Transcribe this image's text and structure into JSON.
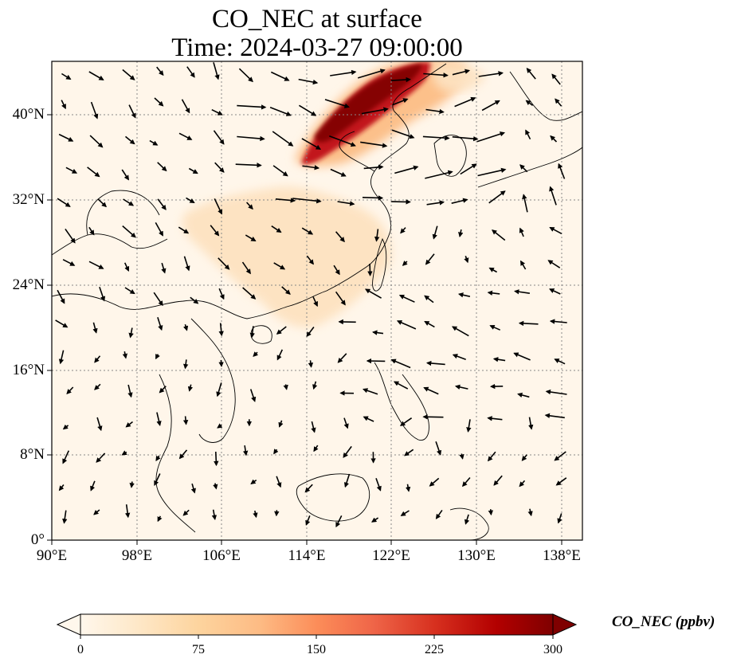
{
  "title": {
    "line1": "CO_NEC at surface",
    "line2": "Time: 2024-03-27 09:00:00"
  },
  "map": {
    "lon_range": [
      90,
      140
    ],
    "lat_range": [
      0,
      45
    ],
    "gridlines": true,
    "coastlines": true
  },
  "axes": {
    "lon_ticks": [
      90,
      98,
      106,
      114,
      122,
      130,
      138
    ],
    "lon_tick_labels": [
      "90°E",
      "98°E",
      "106°E",
      "114°E",
      "122°E",
      "130°E",
      "138°E"
    ],
    "lat_ticks": [
      0,
      8,
      16,
      24,
      32,
      40
    ],
    "lat_tick_labels": [
      "0°",
      "8°N",
      "16°N",
      "24°N",
      "32°N",
      "40°N"
    ]
  },
  "colorbar": {
    "label": "CO_NEC (ppbv)",
    "ticks": [
      0,
      75,
      150,
      225,
      300
    ],
    "tick_labels": [
      "0",
      "75",
      "150",
      "225",
      "300"
    ],
    "range": [
      0,
      300
    ],
    "extend": "both",
    "colormap": "OrRd",
    "colors": [
      "#fff7ec",
      "#fee8c8",
      "#fdd49e",
      "#fdbb84",
      "#fc8d59",
      "#ef6548",
      "#d7301f",
      "#b30000",
      "#7f0000"
    ]
  },
  "plume_regions": [
    {
      "name": "north-china-plume-core",
      "lon": [
        114,
        126
      ],
      "lat": [
        37,
        45
      ],
      "value_ppbv": 300
    },
    {
      "name": "north-china-plume-edge",
      "lon": [
        113,
        128
      ],
      "lat": [
        35,
        45
      ],
      "value_ppbv": 170
    },
    {
      "name": "yangtze-sichuan-band",
      "lon": [
        102,
        124
      ],
      "lat": [
        25,
        35
      ],
      "value_ppbv": 45
    },
    {
      "name": "korea-japan-band",
      "lon": [
        125,
        130
      ],
      "lat": [
        40,
        45
      ],
      "value_ppbv": 55
    }
  ],
  "wind_vectors_note": ""
}
